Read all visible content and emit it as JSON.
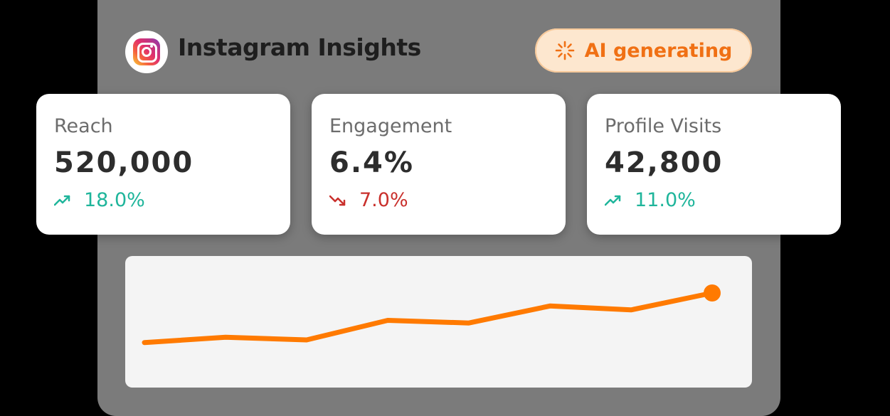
{
  "header": {
    "title": "Instagram Insights",
    "logo_icon": "instagram-icon",
    "ai_badge": {
      "label": "AI generating",
      "icon": "loading-spinner-icon",
      "color": "#f07014"
    }
  },
  "metrics": [
    {
      "label": "Reach",
      "value": "520,000",
      "delta": "18.0%",
      "direction": "up",
      "icon": "trending-up-icon"
    },
    {
      "label": "Engagement",
      "value": "6.4%",
      "delta": "7.0%",
      "direction": "down",
      "icon": "trending-down-icon"
    },
    {
      "label": "Profile Visits",
      "value": "42,800",
      "delta": "11.0%",
      "direction": "up",
      "icon": "trending-up-icon"
    }
  ],
  "colors": {
    "up": "#1fb59b",
    "down": "#c9302c",
    "accent": "#ff7a00"
  },
  "chart_data": {
    "type": "line",
    "x": [
      1,
      2,
      3,
      4,
      5,
      6,
      7,
      8
    ],
    "series": [
      {
        "values": [
          10,
          14,
          12,
          27,
          25,
          38,
          35,
          48
        ]
      }
    ],
    "ylim": [
      0,
      60
    ],
    "grid": false,
    "last_point_marker": true,
    "color": "#ff7a00"
  }
}
